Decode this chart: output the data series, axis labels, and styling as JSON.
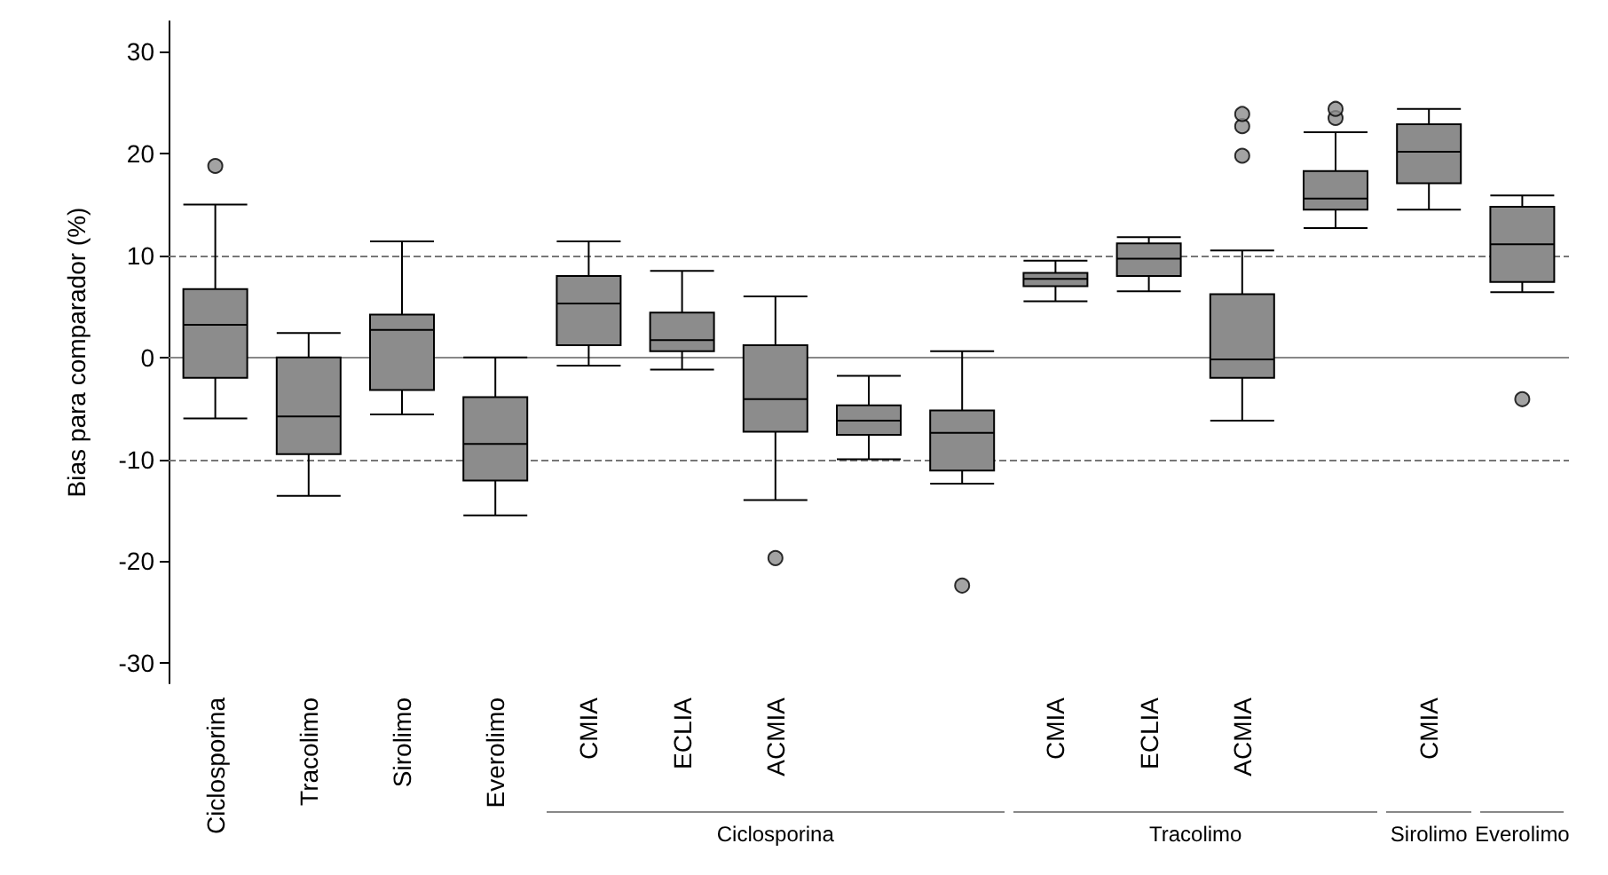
{
  "chart_data": {
    "type": "box",
    "ylabel": "Bias para comparador (%)",
    "categories": [
      "Ciclosporina",
      "Tracolimo",
      "Sirolimo",
      "Everolimo",
      "CMIA",
      "ECLIA",
      "ACMIA",
      null,
      null,
      "CMIA",
      "ECLIA",
      "ACMIA",
      null,
      "CMIA",
      null
    ],
    "boxes": [
      {
        "low": -6,
        "q1": -2,
        "median": 3.2,
        "q3": 6.7,
        "high": 15,
        "outliers": [
          18.8
        ]
      },
      {
        "low": -13.6,
        "q1": -9.5,
        "median": -5.8,
        "q3": 0,
        "high": 2.4
      },
      {
        "low": -5.6,
        "q1": -3.2,
        "median": 2.7,
        "q3": 4.2,
        "high": 11.4
      },
      {
        "low": -15.5,
        "q1": -12.1,
        "median": -8.5,
        "q3": -3.9,
        "high": 0
      },
      {
        "low": -0.8,
        "q1": 1.2,
        "median": 5.3,
        "q3": 8,
        "high": 11.4
      },
      {
        "low": -1.2,
        "q1": 0.6,
        "median": 1.7,
        "q3": 4.4,
        "high": 8.5
      },
      {
        "low": -14,
        "q1": -7.3,
        "median": -4.1,
        "q3": 1.2,
        "high": 6,
        "outliers": [
          -19.7
        ]
      },
      {
        "low": -10,
        "q1": -7.6,
        "median": -6.2,
        "q3": -4.7,
        "high": -1.8
      },
      {
        "low": -12.4,
        "q1": -11.1,
        "median": -7.4,
        "q3": -5.2,
        "high": 0.6,
        "outliers": [
          -22.4
        ]
      },
      {
        "low": 5.5,
        "q1": 7,
        "median": 7.7,
        "q3": 8.3,
        "high": 9.5
      },
      {
        "low": 6.5,
        "q1": 8,
        "median": 9.7,
        "q3": 11.2,
        "high": 11.8
      },
      {
        "low": -6.2,
        "q1": -2,
        "median": -0.2,
        "q3": 6.2,
        "high": 10.5,
        "outliers": [
          19.8,
          22.7,
          23.9
        ]
      },
      {
        "low": 12.7,
        "q1": 14.5,
        "median": 15.6,
        "q3": 18.3,
        "high": 22.1,
        "outliers": [
          23.5,
          24.4
        ]
      },
      {
        "low": 14.5,
        "q1": 17.1,
        "median": 20.2,
        "q3": 22.9,
        "high": 24.4
      },
      {
        "low": 6.4,
        "q1": 7.4,
        "median": 11.1,
        "q3": 14.8,
        "high": 15.9,
        "outliers": [
          -4.1
        ]
      }
    ],
    "color": "#8c8c8c",
    "ylim": [
      -32,
      33
    ],
    "yticks": [
      -30,
      -20,
      -10,
      0,
      10,
      20,
      30
    ],
    "ref_lines": [
      {
        "axis": "y",
        "value": 10,
        "line_style": "dashed",
        "color": "#777777"
      },
      {
        "axis": "y",
        "value": -10,
        "line_style": "dashed",
        "color": "#777777"
      },
      {
        "axis": "y",
        "value": 0,
        "line_style": "solid",
        "color": "#888888"
      }
    ],
    "annotations": [
      "Ciclosporina",
      "Tracolimo",
      "Sirolimo",
      "Everolimo"
    ],
    "grid": false
  }
}
